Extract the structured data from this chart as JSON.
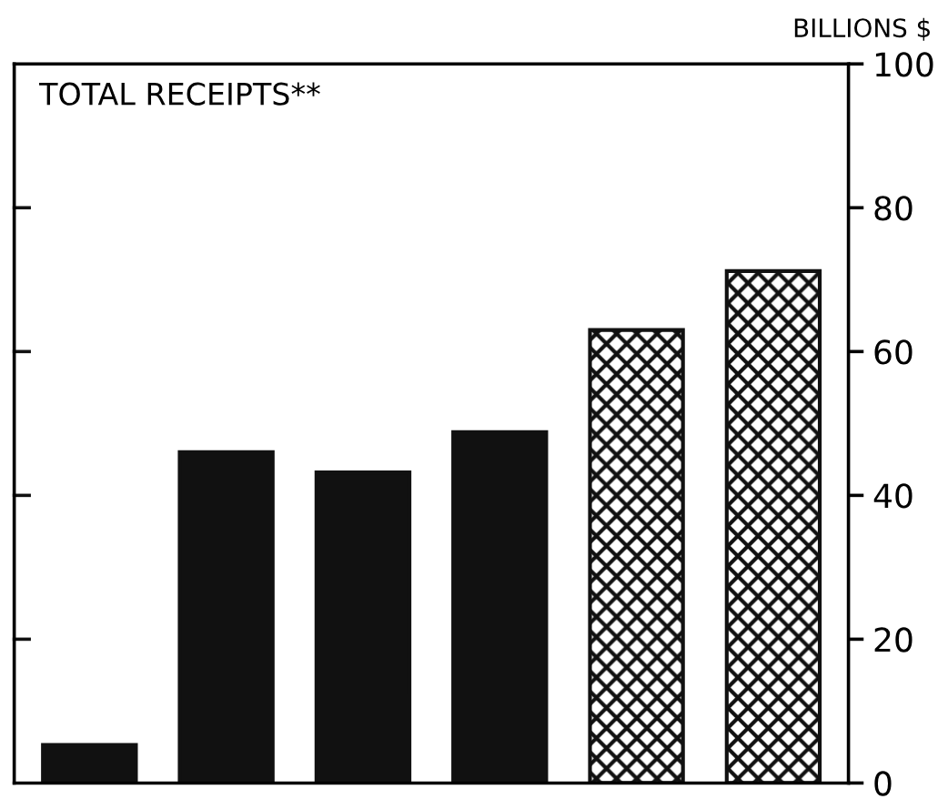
{
  "chart_data": {
    "type": "bar",
    "title": "TOTAL RECEIPTS**",
    "ylabel": "BILLIONS $",
    "categories": [
      null,
      null,
      null,
      null,
      null,
      null
    ],
    "series": [
      {
        "color": "#111111",
        "values": [
          5.3,
          46,
          43.2,
          48.8,
          null,
          null
        ]
      },
      {
        "color": "#111111",
        "values": [
          null,
          null,
          null,
          null,
          63,
          71.2
        ]
      }
    ],
    "ylim": [
      0,
      100
    ],
    "yticks": [
      0,
      20,
      40,
      60,
      80,
      100
    ],
    "grid": false,
    "legend": false
  }
}
